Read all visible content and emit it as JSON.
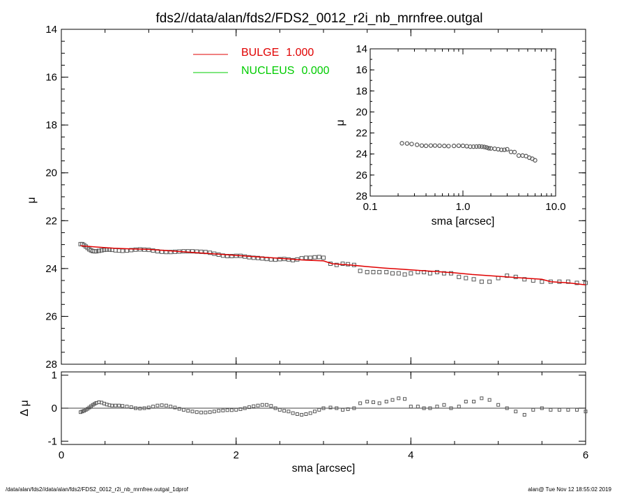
{
  "title": "fds2//data/alan/fds2/FDS2_0012_r2i_nb_mrnfree.outgal",
  "footer_left": "/data/alan/fds2//data/alan/fds2/FDS2_0012_r2i_nb_mrnfree.outgal_1dprof",
  "footer_right": "alan@  Tue Nov 12 18:55:02 2019",
  "colors": {
    "bulge": "#e00000",
    "nucleus": "#00cc00",
    "data": "#555555",
    "axes": "#000000"
  },
  "chart_data": [
    {
      "id": "main",
      "type": "scatter",
      "xlabel": "sma [arcsec]",
      "ylabel": "μ",
      "xlim": [
        0,
        6
      ],
      "ylim": [
        28,
        14
      ],
      "xticks": [
        "0",
        "2",
        "4",
        "6"
      ],
      "yticks": [
        "14",
        "16",
        "18",
        "20",
        "22",
        "24",
        "26",
        "28"
      ],
      "legend_position": "top-left",
      "legend": [
        {
          "name": "BULGE",
          "value": "1.000",
          "color": "#e00000"
        },
        {
          "name": "NUCLEUS",
          "value": "0.000",
          "color": "#00cc00"
        }
      ],
      "series": [
        {
          "name": "data",
          "marker": "square",
          "x": [
            0.22,
            0.24,
            0.26,
            0.28,
            0.3,
            0.32,
            0.34,
            0.36,
            0.38,
            0.4,
            0.43,
            0.46,
            0.49,
            0.52,
            0.55,
            0.58,
            0.62,
            0.66,
            0.7,
            0.75,
            0.8,
            0.85,
            0.9,
            0.95,
            1.0,
            1.05,
            1.1,
            1.15,
            1.2,
            1.25,
            1.3,
            1.35,
            1.4,
            1.45,
            1.5,
            1.55,
            1.6,
            1.65,
            1.7,
            1.75,
            1.8,
            1.85,
            1.9,
            1.95,
            2.0,
            2.05,
            2.1,
            2.15,
            2.2,
            2.25,
            2.3,
            2.35,
            2.4,
            2.45,
            2.5,
            2.55,
            2.6,
            2.65,
            2.7,
            2.75,
            2.8,
            2.85,
            2.9,
            2.95,
            3.0,
            3.08,
            3.15,
            3.22,
            3.28,
            3.35,
            3.42,
            3.5,
            3.57,
            3.64,
            3.72,
            3.79,
            3.86,
            3.93,
            4.0,
            4.08,
            4.15,
            4.22,
            4.3,
            4.38,
            4.46,
            4.55,
            4.63,
            4.72,
            4.81,
            4.9,
            5.0,
            5.1,
            5.2,
            5.3,
            5.4,
            5.5,
            5.6,
            5.7,
            5.8,
            5.9,
            6.0
          ],
          "y": [
            22.98,
            22.98,
            23.02,
            23.08,
            23.14,
            23.2,
            23.24,
            23.27,
            23.28,
            23.28,
            23.26,
            23.24,
            23.22,
            23.21,
            23.21,
            23.22,
            23.24,
            23.25,
            23.26,
            23.25,
            23.23,
            23.21,
            23.2,
            23.21,
            23.22,
            23.25,
            23.28,
            23.3,
            23.31,
            23.31,
            23.3,
            23.29,
            23.28,
            23.28,
            23.28,
            23.29,
            23.3,
            23.31,
            23.34,
            23.38,
            23.42,
            23.46,
            23.48,
            23.48,
            23.47,
            23.47,
            23.5,
            23.53,
            23.55,
            23.56,
            23.58,
            23.6,
            23.62,
            23.63,
            23.61,
            23.6,
            23.62,
            23.65,
            23.62,
            23.57,
            23.55,
            23.55,
            23.53,
            23.52,
            23.55,
            23.8,
            23.85,
            23.8,
            23.82,
            23.85,
            24.1,
            24.15,
            24.15,
            24.15,
            24.15,
            24.2,
            24.2,
            24.25,
            24.2,
            24.15,
            24.15,
            24.2,
            24.15,
            24.2,
            24.2,
            24.35,
            24.4,
            24.45,
            24.55,
            24.55,
            24.4,
            24.3,
            24.35,
            24.45,
            24.5,
            24.55,
            24.55,
            24.55,
            24.55,
            24.6,
            24.6
          ]
        },
        {
          "name": "BULGE",
          "marker": "line",
          "x": [
            0.22,
            0.4,
            0.6,
            0.8,
            1.0,
            1.2,
            1.4,
            1.6,
            1.8,
            2.0,
            2.2,
            2.4,
            2.6,
            2.8,
            3.0,
            3.1,
            3.3,
            3.5,
            3.7,
            3.9,
            4.1,
            4.3,
            4.5,
            4.7,
            4.9,
            5.1,
            5.3,
            5.5,
            5.6,
            5.8,
            6.0
          ],
          "y": [
            23.05,
            23.1,
            23.15,
            23.18,
            23.2,
            23.25,
            23.3,
            23.35,
            23.4,
            23.45,
            23.5,
            23.55,
            23.6,
            23.65,
            23.68,
            23.8,
            23.85,
            23.92,
            23.98,
            24.03,
            24.08,
            24.13,
            24.18,
            24.25,
            24.3,
            24.35,
            24.4,
            24.45,
            24.55,
            24.6,
            24.68
          ]
        },
        {
          "name": "NUCLEUS",
          "marker": "line",
          "x": [],
          "y": []
        }
      ]
    },
    {
      "id": "inset",
      "type": "scatter",
      "xlabel": "sma [arcsec]",
      "ylabel": "μ",
      "xscale": "log",
      "xlim": [
        0.1,
        10.0
      ],
      "ylim": [
        28,
        14
      ],
      "xticks": [
        "0.1",
        "1.0",
        "10.0"
      ],
      "yticks": [
        "14",
        "16",
        "18",
        "20",
        "22",
        "24",
        "26",
        "28"
      ],
      "series": [
        {
          "name": "data",
          "marker": "circle",
          "x": [
            0.22,
            0.25,
            0.28,
            0.32,
            0.36,
            0.4,
            0.45,
            0.5,
            0.56,
            0.63,
            0.7,
            0.8,
            0.9,
            1.0,
            1.1,
            1.2,
            1.3,
            1.4,
            1.5,
            1.6,
            1.7,
            1.8,
            1.9,
            2.0,
            2.2,
            2.4,
            2.6,
            2.8,
            3.0,
            3.3,
            3.6,
            4.0,
            4.4,
            4.8,
            5.2,
            5.6,
            6.0
          ],
          "y": [
            22.98,
            23.0,
            23.05,
            23.12,
            23.2,
            23.22,
            23.2,
            23.2,
            23.21,
            23.23,
            23.25,
            23.23,
            23.21,
            23.22,
            23.26,
            23.3,
            23.3,
            23.29,
            23.28,
            23.3,
            23.33,
            23.38,
            23.45,
            23.47,
            23.5,
            23.55,
            23.6,
            23.6,
            23.55,
            23.8,
            23.82,
            24.15,
            24.15,
            24.2,
            24.35,
            24.45,
            24.6
          ]
        }
      ]
    },
    {
      "id": "residual",
      "type": "scatter",
      "xlabel": "sma [arcsec]",
      "ylabel": "Δ μ",
      "xlim": [
        0,
        6
      ],
      "ylim": [
        -1.1,
        1.1
      ],
      "yticks": [
        "1",
        "0",
        "-1"
      ],
      "series": [
        {
          "name": "residual",
          "marker": "square",
          "x": [
            0.22,
            0.24,
            0.26,
            0.28,
            0.3,
            0.32,
            0.34,
            0.36,
            0.38,
            0.4,
            0.43,
            0.46,
            0.49,
            0.52,
            0.55,
            0.58,
            0.62,
            0.66,
            0.7,
            0.75,
            0.8,
            0.85,
            0.9,
            0.95,
            1.0,
            1.05,
            1.1,
            1.15,
            1.2,
            1.25,
            1.3,
            1.35,
            1.4,
            1.45,
            1.5,
            1.55,
            1.6,
            1.65,
            1.7,
            1.75,
            1.8,
            1.85,
            1.9,
            1.95,
            2.0,
            2.05,
            2.1,
            2.15,
            2.2,
            2.25,
            2.3,
            2.35,
            2.4,
            2.45,
            2.5,
            2.55,
            2.6,
            2.65,
            2.7,
            2.75,
            2.8,
            2.85,
            2.9,
            2.95,
            3.0,
            3.08,
            3.15,
            3.22,
            3.28,
            3.35,
            3.42,
            3.5,
            3.57,
            3.64,
            3.72,
            3.79,
            3.86,
            3.93,
            4.0,
            4.08,
            4.15,
            4.22,
            4.3,
            4.38,
            4.46,
            4.55,
            4.63,
            4.72,
            4.81,
            4.9,
            5.0,
            5.1,
            5.2,
            5.3,
            5.4,
            5.5,
            5.6,
            5.7,
            5.8,
            5.9,
            6.0
          ],
          "y": [
            -0.12,
            -0.1,
            -0.08,
            -0.05,
            -0.02,
            0.02,
            0.06,
            0.1,
            0.13,
            0.16,
            0.18,
            0.17,
            0.14,
            0.11,
            0.09,
            0.08,
            0.08,
            0.08,
            0.07,
            0.05,
            0.03,
            0.0,
            -0.01,
            0.0,
            0.02,
            0.05,
            0.08,
            0.09,
            0.08,
            0.05,
            0.02,
            -0.02,
            -0.05,
            -0.08,
            -0.1,
            -0.12,
            -0.13,
            -0.13,
            -0.12,
            -0.1,
            -0.08,
            -0.07,
            -0.06,
            -0.06,
            -0.05,
            -0.03,
            0.0,
            0.03,
            0.06,
            0.08,
            0.1,
            0.1,
            0.07,
            0.0,
            -0.05,
            -0.08,
            -0.1,
            -0.15,
            -0.18,
            -0.2,
            -0.18,
            -0.15,
            -0.1,
            -0.05,
            0.0,
            0.02,
            0.0,
            -0.05,
            -0.03,
            0.0,
            0.15,
            0.2,
            0.18,
            0.15,
            0.2,
            0.25,
            0.3,
            0.28,
            0.05,
            0.05,
            0.0,
            0.0,
            0.05,
            0.1,
            0.0,
            0.05,
            0.2,
            0.2,
            0.3,
            0.25,
            0.1,
            0.0,
            -0.1,
            -0.2,
            -0.05,
            0.0,
            -0.05,
            -0.05,
            -0.05,
            -0.05,
            -0.1
          ]
        }
      ]
    }
  ]
}
